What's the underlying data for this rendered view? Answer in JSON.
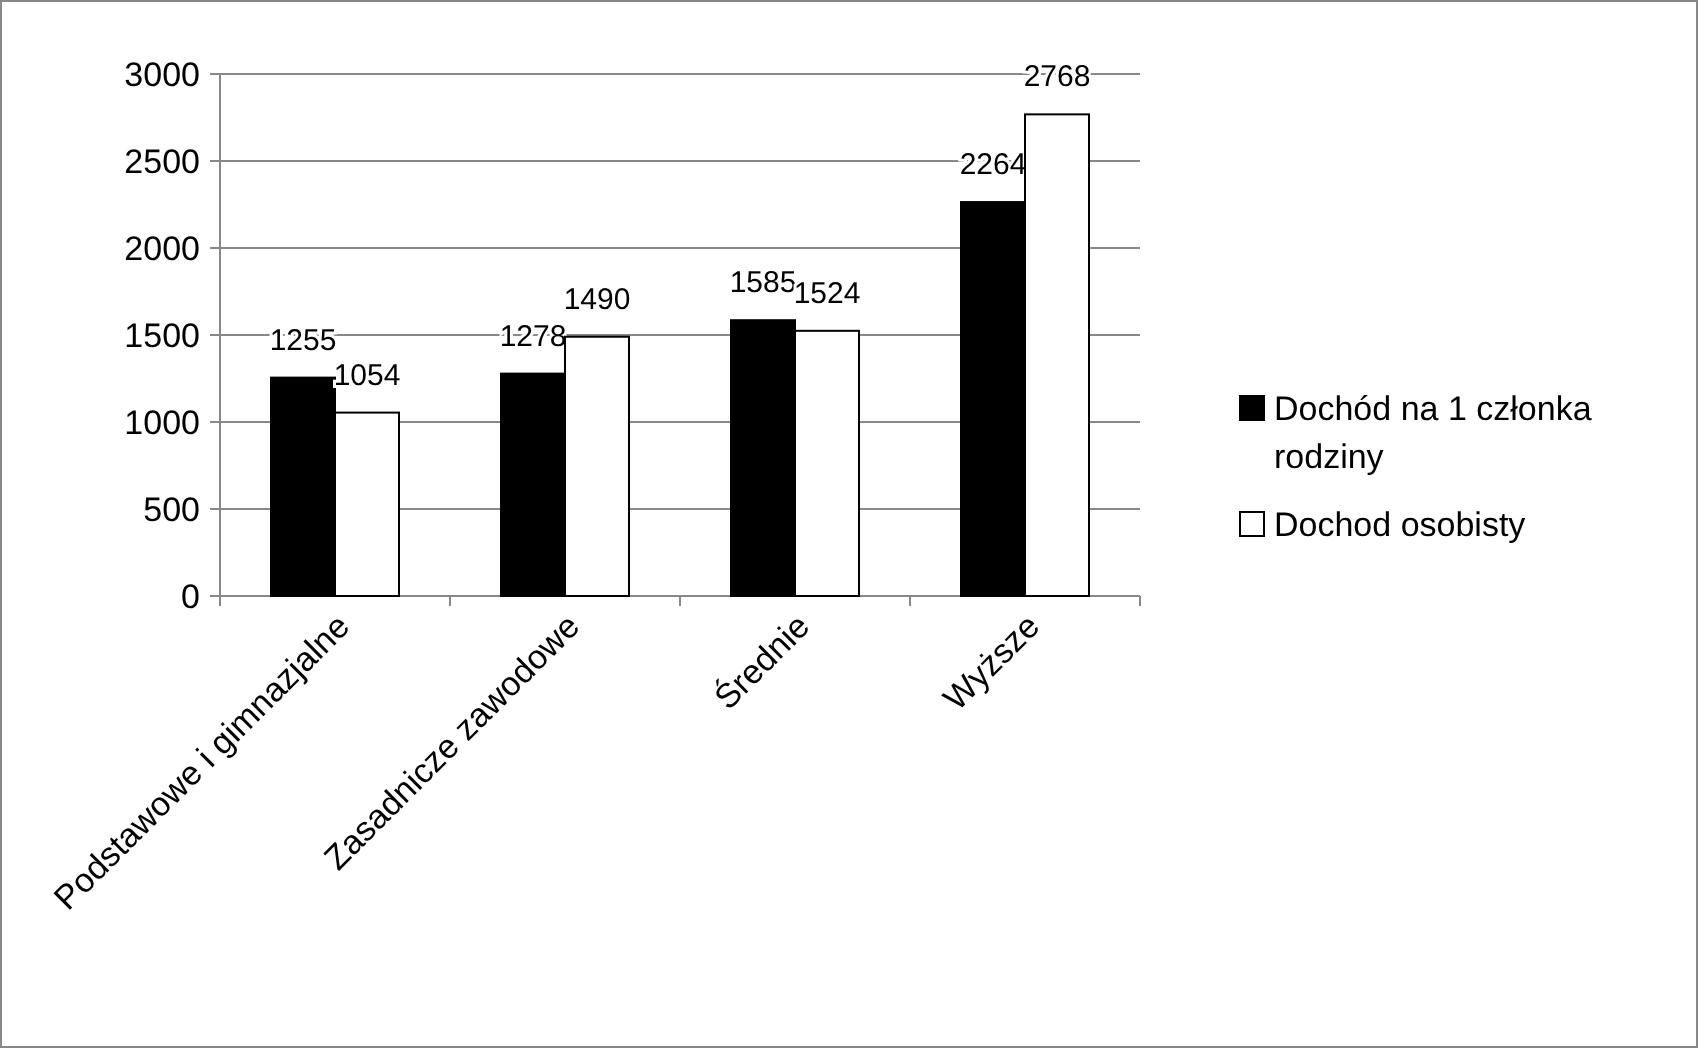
{
  "chart_data": {
    "type": "bar",
    "categories": [
      "Podstawowe i gimnazjalne",
      "Zasadnicze zawodowe",
      "Średnie",
      "Wyższe"
    ],
    "series": [
      {
        "name": "Dochód na 1 członka rodziny",
        "color": "#000000",
        "values": [
          1255,
          1278,
          1585,
          2264
        ]
      },
      {
        "name": "Dochod osobisty",
        "color": "#ffffff",
        "values": [
          1054,
          1490,
          1524,
          2768
        ]
      }
    ],
    "ylim": [
      0,
      3000
    ],
    "yticks": [
      0,
      500,
      1000,
      1500,
      2000,
      2500,
      3000
    ],
    "grid": "y",
    "legend": "right",
    "data_labels": true
  }
}
